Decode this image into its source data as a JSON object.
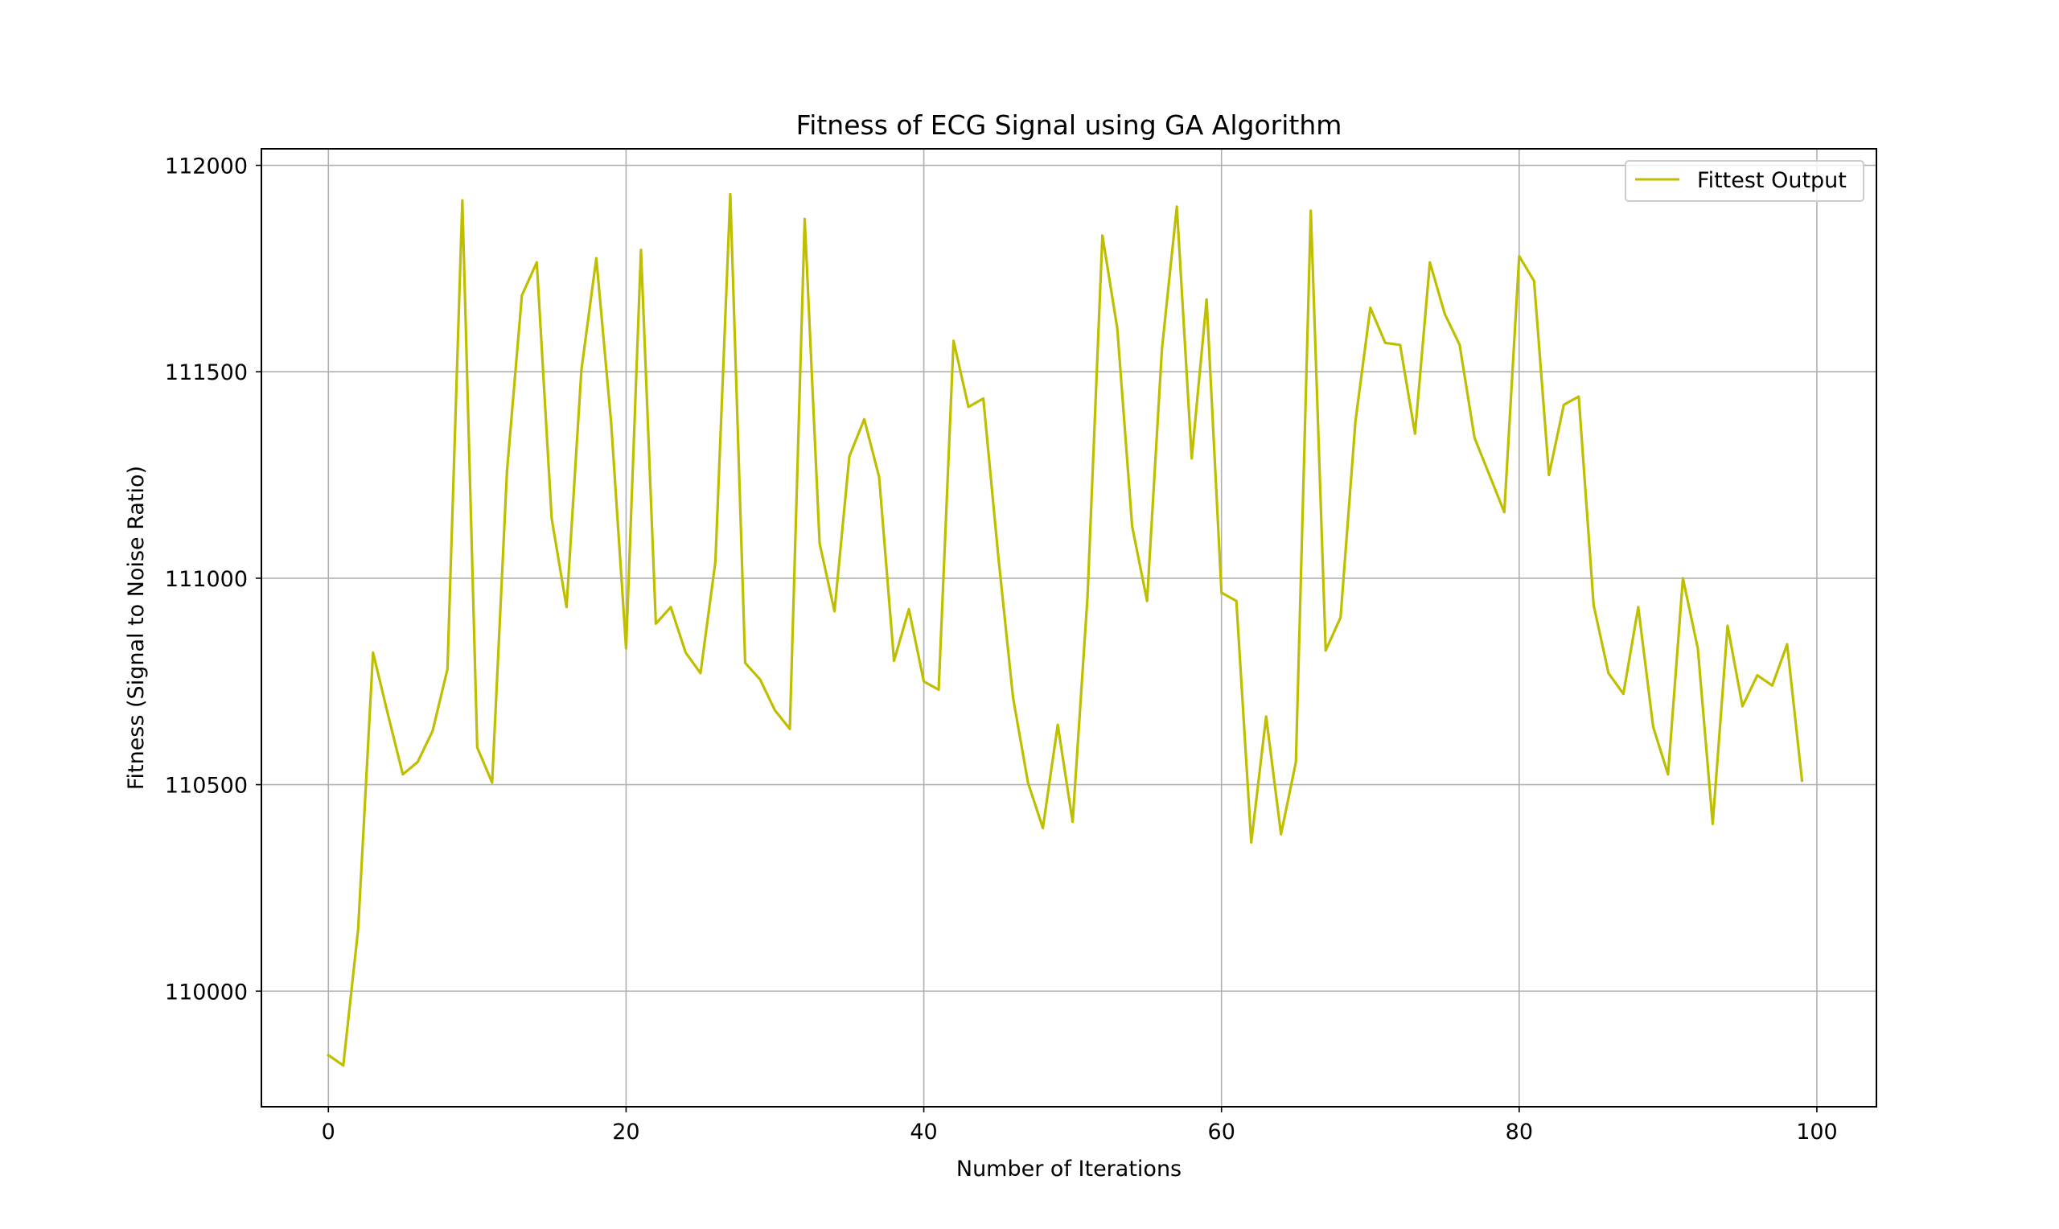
{
  "chart_data": {
    "type": "line",
    "title": "Fitness of ECG Signal using GA Algorithm",
    "xlabel": "Number of Iterations",
    "ylabel": "Fitness (Signal to Noise Ratio)",
    "xlim": [
      -4.5,
      104
    ],
    "ylim": [
      109720,
      112040
    ],
    "xticks": [
      0,
      20,
      40,
      60,
      80,
      100
    ],
    "yticks": [
      110000,
      110500,
      111000,
      111500,
      112000
    ],
    "xtick_labels": [
      "0",
      "20",
      "40",
      "60",
      "80",
      "100"
    ],
    "ytick_labels": [
      "110000",
      "110500",
      "111000",
      "111500",
      "112000"
    ],
    "grid": true,
    "legend_position": "top-right",
    "series": [
      {
        "name": "Fittest Output",
        "color": "#bfbf00",
        "x": [
          0,
          1,
          2,
          3,
          4,
          5,
          6,
          7,
          8,
          9,
          10,
          11,
          12,
          13,
          14,
          15,
          16,
          17,
          18,
          19,
          20,
          21,
          22,
          23,
          24,
          25,
          26,
          27,
          28,
          29,
          30,
          31,
          32,
          33,
          34,
          35,
          36,
          37,
          38,
          39,
          40,
          41,
          42,
          43,
          44,
          45,
          46,
          47,
          48,
          49,
          50,
          51,
          52,
          53,
          54,
          55,
          56,
          57,
          58,
          59,
          60,
          61,
          62,
          63,
          64,
          65,
          66,
          67,
          68,
          69,
          70,
          71,
          72,
          73,
          74,
          75,
          76,
          77,
          78,
          79,
          80,
          81,
          82,
          83,
          84,
          85,
          86,
          87,
          88,
          89,
          90,
          91,
          92,
          93,
          94,
          95,
          96,
          97,
          98,
          99
        ],
        "y": [
          109845,
          109820,
          110150,
          110820,
          110670,
          110525,
          110555,
          110630,
          110780,
          111915,
          110590,
          110505,
          111260,
          111685,
          111765,
          111145,
          110930,
          111505,
          111775,
          111375,
          110830,
          111795,
          110890,
          110930,
          110820,
          110770,
          111040,
          111930,
          110795,
          110755,
          110680,
          110635,
          111870,
          111085,
          110920,
          111295,
          111385,
          111245,
          110800,
          110925,
          110750,
          110730,
          111575,
          111415,
          111435,
          111055,
          110710,
          110505,
          110395,
          110645,
          110410,
          110955,
          111830,
          111605,
          111125,
          110945,
          111555,
          111900,
          111290,
          111675,
          110965,
          110945,
          110360,
          110665,
          110380,
          110555,
          111890,
          110825,
          110905,
          111380,
          111655,
          111570,
          111565,
          111350,
          111765,
          111640,
          111565,
          111340,
          111250,
          111160,
          111780,
          111720,
          111250,
          111420,
          111440,
          110935,
          110770,
          110720,
          110930,
          110640,
          110525,
          111000,
          110830,
          110405,
          110885,
          110690,
          110765,
          110740,
          110840,
          110510
        ]
      }
    ]
  }
}
